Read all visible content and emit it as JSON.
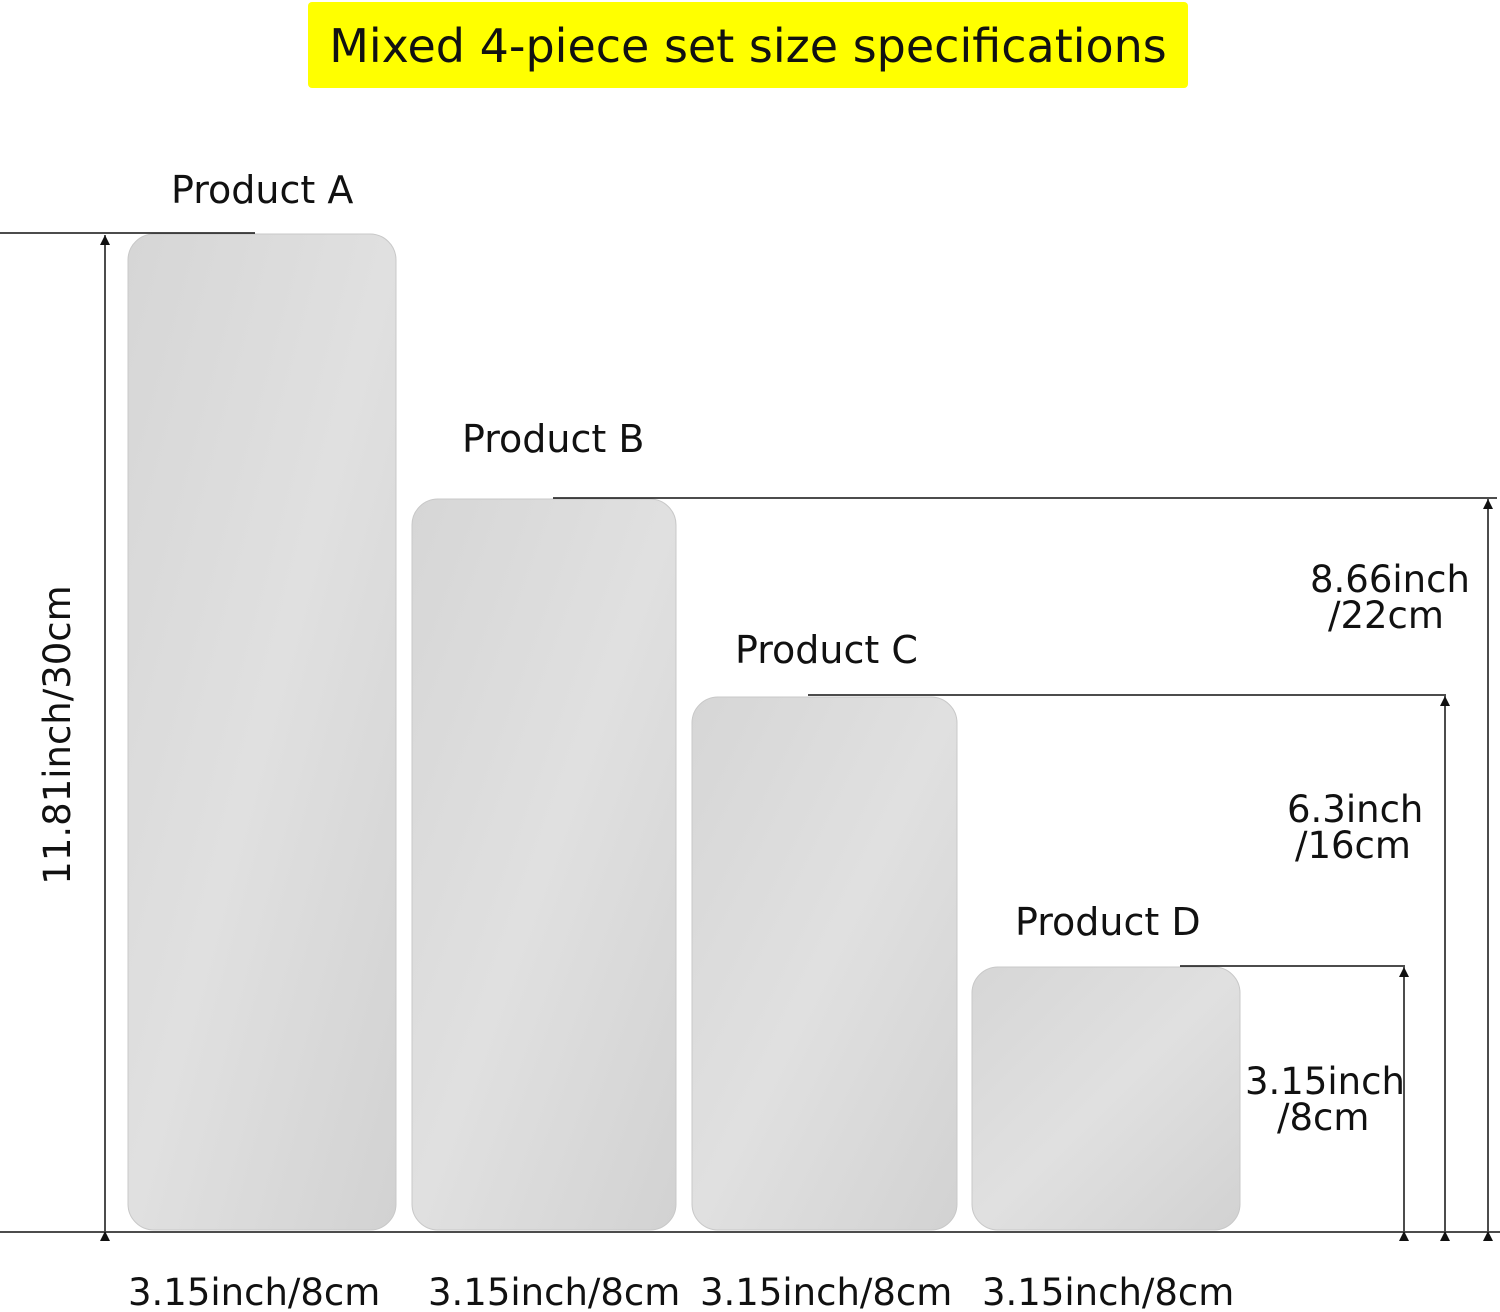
{
  "title": "Mixed 4-piece set size specifications",
  "colors": {
    "banner": "#ffff00",
    "plate": "#d9d9d9",
    "line": "#111111"
  },
  "products": [
    {
      "label": "Product A",
      "height": "11.81inch/30cm",
      "width": "3.15inch/8cm"
    },
    {
      "label": "Product B",
      "height_in": "8.66inch",
      "height_cm": "/22cm",
      "width": "3.15inch/8cm"
    },
    {
      "label": "Product C",
      "height_in": "6.3inch",
      "height_cm": "/16cm",
      "width": "3.15inch/8cm"
    },
    {
      "label": "Product D",
      "height_in": "3.15inch",
      "height_cm": "/8cm",
      "width": "3.15inch/8cm"
    }
  ]
}
